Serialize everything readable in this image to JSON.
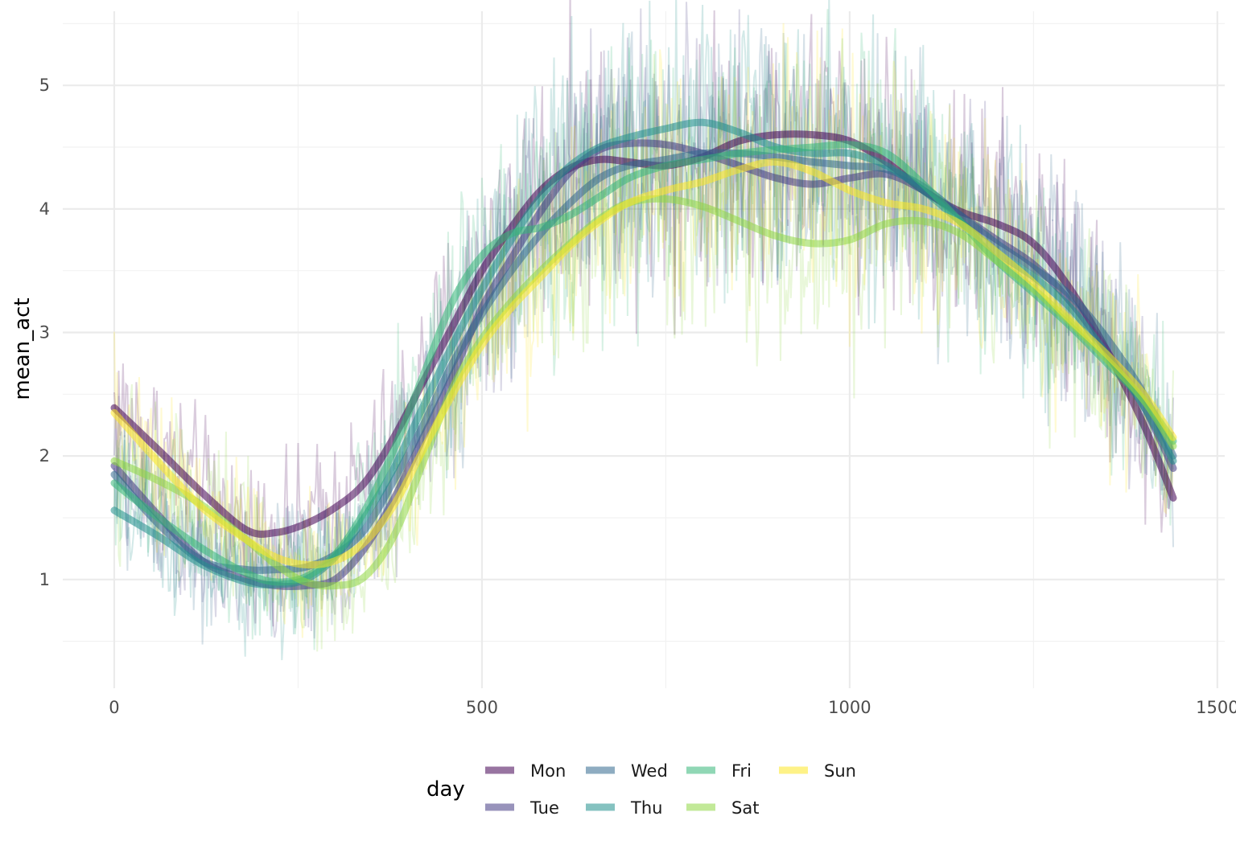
{
  "chart_data": {
    "type": "line",
    "xlabel": "",
    "ylabel": "mean_act",
    "xlim": [
      -70,
      1510
    ],
    "ylim": [
      0.12,
      5.6
    ],
    "x_ticks": [
      0,
      500,
      1000,
      1500
    ],
    "x_tick_labels": [
      "0",
      "500",
      "1000",
      "1500"
    ],
    "y_ticks": [
      1,
      2,
      3,
      4,
      5
    ],
    "y_tick_labels": [
      "1",
      "2",
      "3",
      "4",
      "5"
    ],
    "grid": true,
    "legend": {
      "title": "day",
      "position": "bottom"
    },
    "series": [
      {
        "name": "Mon",
        "color": "#440154",
        "smooth": [
          [
            0,
            2.39
          ],
          [
            60,
            2.05
          ],
          [
            120,
            1.7
          ],
          [
            180,
            1.4
          ],
          [
            220,
            1.38
          ],
          [
            260,
            1.45
          ],
          [
            300,
            1.58
          ],
          [
            340,
            1.78
          ],
          [
            380,
            2.15
          ],
          [
            420,
            2.6
          ],
          [
            460,
            3.05
          ],
          [
            500,
            3.5
          ],
          [
            540,
            3.85
          ],
          [
            580,
            4.15
          ],
          [
            620,
            4.33
          ],
          [
            660,
            4.4
          ],
          [
            700,
            4.38
          ],
          [
            750,
            4.35
          ],
          [
            800,
            4.42
          ],
          [
            850,
            4.55
          ],
          [
            900,
            4.6
          ],
          [
            950,
            4.6
          ],
          [
            1000,
            4.55
          ],
          [
            1050,
            4.38
          ],
          [
            1100,
            4.15
          ],
          [
            1150,
            3.98
          ],
          [
            1200,
            3.88
          ],
          [
            1250,
            3.72
          ],
          [
            1300,
            3.35
          ],
          [
            1350,
            2.85
          ],
          [
            1400,
            2.25
          ],
          [
            1440,
            1.66
          ]
        ]
      },
      {
        "name": "Tue",
        "color": "#443a83",
        "smooth": [
          [
            0,
            1.92
          ],
          [
            60,
            1.52
          ],
          [
            120,
            1.15
          ],
          [
            180,
            1.0
          ],
          [
            220,
            0.95
          ],
          [
            260,
            0.95
          ],
          [
            300,
            1.0
          ],
          [
            340,
            1.25
          ],
          [
            380,
            1.65
          ],
          [
            420,
            2.15
          ],
          [
            460,
            2.65
          ],
          [
            500,
            3.2
          ],
          [
            540,
            3.6
          ],
          [
            580,
            3.98
          ],
          [
            620,
            4.3
          ],
          [
            660,
            4.48
          ],
          [
            700,
            4.53
          ],
          [
            750,
            4.52
          ],
          [
            800,
            4.45
          ],
          [
            850,
            4.35
          ],
          [
            900,
            4.25
          ],
          [
            950,
            4.2
          ],
          [
            1000,
            4.25
          ],
          [
            1050,
            4.28
          ],
          [
            1100,
            4.15
          ],
          [
            1150,
            3.95
          ],
          [
            1200,
            3.75
          ],
          [
            1250,
            3.55
          ],
          [
            1300,
            3.25
          ],
          [
            1350,
            2.85
          ],
          [
            1400,
            2.4
          ],
          [
            1440,
            1.9
          ]
        ]
      },
      {
        "name": "Wed",
        "color": "#31688e",
        "smooth": [
          [
            0,
            1.85
          ],
          [
            60,
            1.45
          ],
          [
            120,
            1.15
          ],
          [
            180,
            1.08
          ],
          [
            220,
            1.08
          ],
          [
            260,
            1.1
          ],
          [
            300,
            1.2
          ],
          [
            340,
            1.4
          ],
          [
            380,
            1.8
          ],
          [
            420,
            2.25
          ],
          [
            460,
            2.75
          ],
          [
            500,
            3.15
          ],
          [
            540,
            3.5
          ],
          [
            580,
            3.8
          ],
          [
            620,
            4.05
          ],
          [
            660,
            4.25
          ],
          [
            700,
            4.35
          ],
          [
            750,
            4.4
          ],
          [
            800,
            4.45
          ],
          [
            850,
            4.45
          ],
          [
            900,
            4.42
          ],
          [
            950,
            4.38
          ],
          [
            1000,
            4.35
          ],
          [
            1050,
            4.32
          ],
          [
            1100,
            4.18
          ],
          [
            1150,
            3.95
          ],
          [
            1200,
            3.72
          ],
          [
            1250,
            3.52
          ],
          [
            1300,
            3.3
          ],
          [
            1350,
            2.95
          ],
          [
            1400,
            2.5
          ],
          [
            1440,
            2.0
          ]
        ]
      },
      {
        "name": "Thu",
        "color": "#21908d",
        "smooth": [
          [
            0,
            1.56
          ],
          [
            60,
            1.35
          ],
          [
            120,
            1.12
          ],
          [
            180,
            0.98
          ],
          [
            220,
            0.96
          ],
          [
            260,
            1.0
          ],
          [
            300,
            1.18
          ],
          [
            340,
            1.5
          ],
          [
            380,
            1.9
          ],
          [
            420,
            2.4
          ],
          [
            460,
            2.9
          ],
          [
            500,
            3.35
          ],
          [
            540,
            3.75
          ],
          [
            580,
            4.1
          ],
          [
            620,
            4.35
          ],
          [
            660,
            4.5
          ],
          [
            700,
            4.58
          ],
          [
            750,
            4.65
          ],
          [
            800,
            4.7
          ],
          [
            850,
            4.62
          ],
          [
            900,
            4.5
          ],
          [
            950,
            4.45
          ],
          [
            1000,
            4.45
          ],
          [
            1050,
            4.35
          ],
          [
            1100,
            4.15
          ],
          [
            1150,
            3.9
          ],
          [
            1200,
            3.65
          ],
          [
            1250,
            3.45
          ],
          [
            1300,
            3.2
          ],
          [
            1350,
            2.82
          ],
          [
            1400,
            2.4
          ],
          [
            1440,
            1.96
          ]
        ]
      },
      {
        "name": "Fri",
        "color": "#35b779",
        "smooth": [
          [
            0,
            1.78
          ],
          [
            60,
            1.5
          ],
          [
            120,
            1.25
          ],
          [
            180,
            1.05
          ],
          [
            220,
            0.98
          ],
          [
            260,
            1.02
          ],
          [
            300,
            1.2
          ],
          [
            340,
            1.55
          ],
          [
            380,
            2.05
          ],
          [
            420,
            2.65
          ],
          [
            460,
            3.25
          ],
          [
            500,
            3.62
          ],
          [
            540,
            3.8
          ],
          [
            580,
            3.85
          ],
          [
            620,
            3.95
          ],
          [
            660,
            4.1
          ],
          [
            700,
            4.25
          ],
          [
            750,
            4.35
          ],
          [
            800,
            4.4
          ],
          [
            850,
            4.45
          ],
          [
            900,
            4.48
          ],
          [
            950,
            4.5
          ],
          [
            1000,
            4.52
          ],
          [
            1050,
            4.45
          ],
          [
            1100,
            4.2
          ],
          [
            1150,
            3.9
          ],
          [
            1200,
            3.58
          ],
          [
            1250,
            3.32
          ],
          [
            1300,
            3.05
          ],
          [
            1350,
            2.75
          ],
          [
            1400,
            2.45
          ],
          [
            1440,
            2.12
          ]
        ]
      },
      {
        "name": "Sat",
        "color": "#8fd744",
        "smooth": [
          [
            0,
            1.96
          ],
          [
            60,
            1.8
          ],
          [
            120,
            1.6
          ],
          [
            180,
            1.32
          ],
          [
            220,
            1.12
          ],
          [
            260,
            0.98
          ],
          [
            300,
            0.95
          ],
          [
            340,
            1.02
          ],
          [
            380,
            1.35
          ],
          [
            420,
            1.95
          ],
          [
            460,
            2.55
          ],
          [
            500,
            2.95
          ],
          [
            540,
            3.25
          ],
          [
            580,
            3.5
          ],
          [
            620,
            3.72
          ],
          [
            660,
            3.92
          ],
          [
            700,
            4.05
          ],
          [
            750,
            4.08
          ],
          [
            800,
            4.02
          ],
          [
            850,
            3.9
          ],
          [
            900,
            3.78
          ],
          [
            950,
            3.72
          ],
          [
            1000,
            3.75
          ],
          [
            1050,
            3.88
          ],
          [
            1100,
            3.9
          ],
          [
            1150,
            3.8
          ],
          [
            1200,
            3.58
          ],
          [
            1250,
            3.35
          ],
          [
            1300,
            3.08
          ],
          [
            1350,
            2.78
          ],
          [
            1400,
            2.45
          ],
          [
            1440,
            2.08
          ]
        ]
      },
      {
        "name": "Sun",
        "color": "#fde725",
        "smooth": [
          [
            0,
            2.35
          ],
          [
            60,
            1.95
          ],
          [
            120,
            1.58
          ],
          [
            180,
            1.32
          ],
          [
            220,
            1.18
          ],
          [
            260,
            1.12
          ],
          [
            300,
            1.15
          ],
          [
            340,
            1.3
          ],
          [
            380,
            1.6
          ],
          [
            420,
            2.05
          ],
          [
            460,
            2.5
          ],
          [
            500,
            2.9
          ],
          [
            540,
            3.2
          ],
          [
            580,
            3.45
          ],
          [
            620,
            3.7
          ],
          [
            660,
            3.9
          ],
          [
            700,
            4.05
          ],
          [
            750,
            4.15
          ],
          [
            800,
            4.22
          ],
          [
            850,
            4.32
          ],
          [
            900,
            4.38
          ],
          [
            950,
            4.3
          ],
          [
            1000,
            4.15
          ],
          [
            1050,
            4.05
          ],
          [
            1100,
            4.0
          ],
          [
            1150,
            3.88
          ],
          [
            1200,
            3.65
          ],
          [
            1250,
            3.4
          ],
          [
            1300,
            3.1
          ],
          [
            1350,
            2.82
          ],
          [
            1400,
            2.5
          ],
          [
            1440,
            2.15
          ]
        ]
      }
    ]
  }
}
